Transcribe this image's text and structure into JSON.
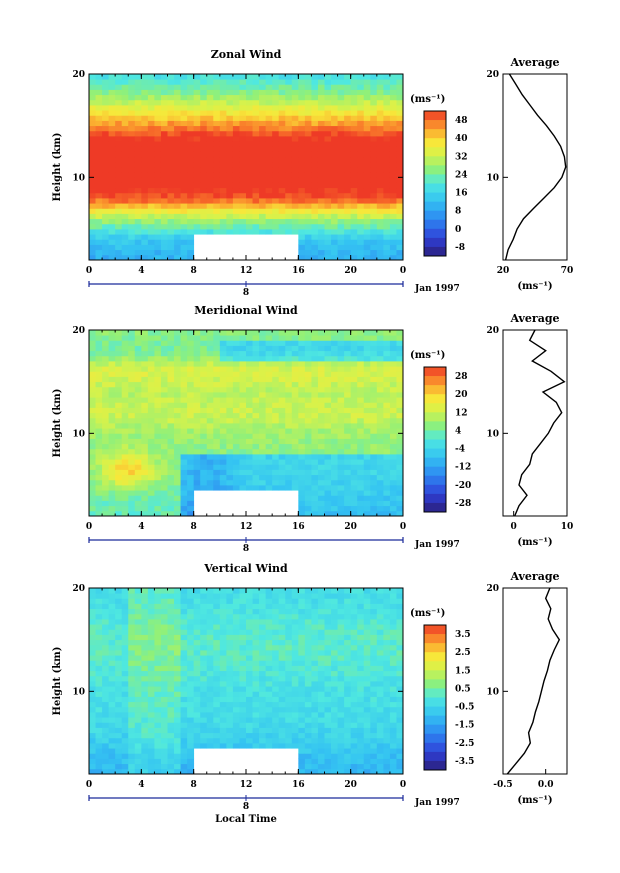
{
  "chart_data": [
    {
      "type": "heatmap",
      "title": "Zonal Wind",
      "ylabel": "Height (km)",
      "xlabel": "",
      "x_ticks": [
        "0",
        "4",
        "8",
        "12",
        "16",
        "20",
        "0"
      ],
      "y_ticks": [
        "10",
        "20"
      ],
      "date_axis": {
        "day": "8",
        "label": "Jan 1997"
      },
      "xlim": [
        0,
        24
      ],
      "ylim": [
        2,
        20
      ],
      "colorbar": {
        "unit": "(ms⁻¹)",
        "ticks": [
          "48",
          "40",
          "32",
          "24",
          "16",
          "8",
          "0",
          "-8"
        ],
        "range": [
          -8,
          52
        ]
      },
      "gap": {
        "x": [
          8,
          16
        ],
        "y": [
          2,
          4.5
        ]
      },
      "field_profile": [
        {
          "height": 2,
          "value": 12
        },
        {
          "height": 4,
          "value": 16
        },
        {
          "height": 6,
          "value": 30
        },
        {
          "height": 8,
          "value": 50
        },
        {
          "height": 10,
          "value": 58
        },
        {
          "height": 12,
          "value": 60
        },
        {
          "height": 14,
          "value": 52
        },
        {
          "height": 16,
          "value": 40
        },
        {
          "height": 18,
          "value": 28
        },
        {
          "height": 20,
          "value": 20
        }
      ],
      "average": {
        "title": "Average",
        "xlabel": "(ms⁻¹)",
        "x_ticks": [
          "20",
          "70"
        ],
        "y_ticks": [
          "10",
          "20"
        ],
        "xlim": [
          20,
          70
        ],
        "ylim": [
          2,
          20
        ],
        "profile": [
          {
            "height": 2,
            "value": 22
          },
          {
            "height": 3,
            "value": 24
          },
          {
            "height": 4,
            "value": 28
          },
          {
            "height": 5,
            "value": 31
          },
          {
            "height": 6,
            "value": 36
          },
          {
            "height": 7,
            "value": 44
          },
          {
            "height": 8,
            "value": 52
          },
          {
            "height": 9,
            "value": 60
          },
          {
            "height": 10,
            "value": 66
          },
          {
            "height": 11,
            "value": 69
          },
          {
            "height": 12,
            "value": 68
          },
          {
            "height": 13,
            "value": 65
          },
          {
            "height": 14,
            "value": 60
          },
          {
            "height": 15,
            "value": 54
          },
          {
            "height": 16,
            "value": 47
          },
          {
            "height": 17,
            "value": 41
          },
          {
            "height": 18,
            "value": 35
          },
          {
            "height": 19,
            "value": 30
          },
          {
            "height": 20,
            "value": 25
          }
        ]
      }
    },
    {
      "type": "heatmap",
      "title": "Meridional Wind",
      "ylabel": "Height (km)",
      "xlabel": "",
      "x_ticks": [
        "0",
        "4",
        "8",
        "12",
        "16",
        "20",
        "0"
      ],
      "y_ticks": [
        "10",
        "20"
      ],
      "date_axis": {
        "day": "8",
        "label": "Jan 1997"
      },
      "xlim": [
        0,
        24
      ],
      "ylim": [
        2,
        20
      ],
      "colorbar": {
        "unit": "(ms⁻¹)",
        "ticks": [
          "28",
          "20",
          "12",
          "4",
          "-4",
          "-12",
          "-20",
          "-28"
        ],
        "range": [
          -32,
          32
        ]
      },
      "gap": {
        "x": [
          8,
          16
        ],
        "y": [
          2,
          4.5
        ]
      },
      "field_profile": [
        {
          "height": 2,
          "value": 2
        },
        {
          "height": 4,
          "value": 4
        },
        {
          "height": 6,
          "value": 6
        },
        {
          "height": 8,
          "value": 6
        },
        {
          "height": 10,
          "value": 8
        },
        {
          "height": 12,
          "value": 12
        },
        {
          "height": 14,
          "value": 10
        },
        {
          "height": 16,
          "value": 14
        },
        {
          "height": 18,
          "value": 4
        },
        {
          "height": 20,
          "value": 6
        }
      ],
      "average": {
        "title": "Average",
        "xlabel": "(ms⁻¹)",
        "x_ticks": [
          "0",
          "10"
        ],
        "y_ticks": [
          "10",
          "20"
        ],
        "xlim": [
          -2,
          10
        ],
        "ylim": [
          2,
          20
        ],
        "profile": [
          {
            "height": 2,
            "value": 0.2
          },
          {
            "height": 3,
            "value": 1.0
          },
          {
            "height": 4,
            "value": 2.5
          },
          {
            "height": 5,
            "value": 1.0
          },
          {
            "height": 6,
            "value": 1.5
          },
          {
            "height": 7,
            "value": 3.0
          },
          {
            "height": 8,
            "value": 3.5
          },
          {
            "height": 9,
            "value": 5.0
          },
          {
            "height": 10,
            "value": 6.5
          },
          {
            "height": 11,
            "value": 7.5
          },
          {
            "height": 12,
            "value": 9.0
          },
          {
            "height": 13,
            "value": 8.0
          },
          {
            "height": 14,
            "value": 5.5
          },
          {
            "height": 15,
            "value": 9.5
          },
          {
            "height": 16,
            "value": 7.0
          },
          {
            "height": 17,
            "value": 3.5
          },
          {
            "height": 18,
            "value": 6.0
          },
          {
            "height": 19,
            "value": 3.0
          },
          {
            "height": 20,
            "value": 4.0
          }
        ]
      }
    },
    {
      "type": "heatmap",
      "title": "Vertical Wind",
      "ylabel": "Height (km)",
      "xlabel": "Local Time",
      "x_ticks": [
        "0",
        "4",
        "8",
        "12",
        "16",
        "20",
        "0"
      ],
      "y_ticks": [
        "10",
        "20"
      ],
      "date_axis": {
        "day": "8",
        "label": "Jan 1997"
      },
      "xlim": [
        0,
        24
      ],
      "ylim": [
        2,
        20
      ],
      "colorbar": {
        "unit": "(ms⁻¹)",
        "ticks": [
          "3.5",
          "2.5",
          "1.5",
          "0.5",
          "-0.5",
          "-1.5",
          "-2.5",
          "-3.5"
        ],
        "range": [
          -4,
          4
        ]
      },
      "gap": {
        "x": [
          8,
          16
        ],
        "y": [
          2,
          4.5
        ]
      },
      "field_profile": [
        {
          "height": 2,
          "value": -1.2
        },
        {
          "height": 4,
          "value": -0.9
        },
        {
          "height": 6,
          "value": -0.5
        },
        {
          "height": 8,
          "value": -0.3
        },
        {
          "height": 10,
          "value": -0.2
        },
        {
          "height": 12,
          "value": 0.0
        },
        {
          "height": 14,
          "value": 0.2
        },
        {
          "height": 16,
          "value": 0.1
        },
        {
          "height": 18,
          "value": -0.2
        },
        {
          "height": 20,
          "value": -0.3
        }
      ],
      "average": {
        "title": "Average",
        "xlabel": "(ms⁻¹)",
        "x_ticks": [
          "-0.5",
          "0.0"
        ],
        "y_ticks": [
          "10",
          "20"
        ],
        "xlim": [
          -0.5,
          0.25
        ],
        "ylim": [
          2,
          20
        ],
        "profile": [
          {
            "height": 2,
            "value": -0.45
          },
          {
            "height": 3,
            "value": -0.35
          },
          {
            "height": 4,
            "value": -0.25
          },
          {
            "height": 5,
            "value": -0.18
          },
          {
            "height": 6,
            "value": -0.2
          },
          {
            "height": 7,
            "value": -0.15
          },
          {
            "height": 8,
            "value": -0.12
          },
          {
            "height": 9,
            "value": -0.08
          },
          {
            "height": 10,
            "value": -0.05
          },
          {
            "height": 11,
            "value": -0.02
          },
          {
            "height": 12,
            "value": 0.02
          },
          {
            "height": 13,
            "value": 0.05
          },
          {
            "height": 14,
            "value": 0.1
          },
          {
            "height": 15,
            "value": 0.16
          },
          {
            "height": 16,
            "value": 0.08
          },
          {
            "height": 17,
            "value": 0.03
          },
          {
            "height": 18,
            "value": 0.06
          },
          {
            "height": 19,
            "value": 0.0
          },
          {
            "height": 20,
            "value": 0.05
          }
        ]
      }
    }
  ]
}
